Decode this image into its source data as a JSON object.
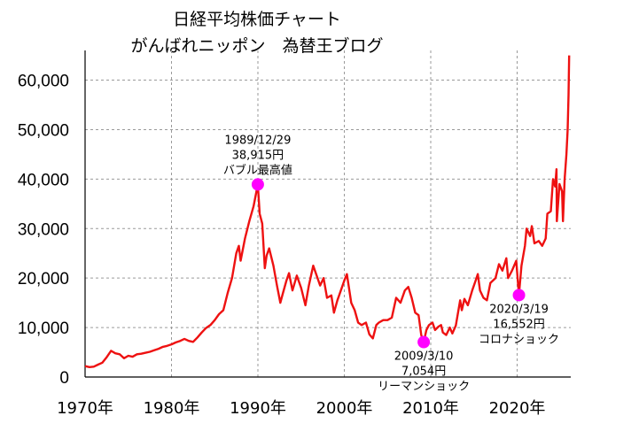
{
  "title_lines": [
    "日経平均株価チャート",
    "がんばれニッポン　為替王ブログ"
  ],
  "colors": {
    "line": "#ee1111",
    "marker": "#ff00ff",
    "grid": "#9a9a9a",
    "axis": "#000000"
  },
  "chart_data": {
    "type": "line",
    "title": "日経平均株価チャート",
    "subtitle": "がんばれニッポン　為替王ブログ",
    "xlabel": "",
    "ylabel": "",
    "xlim": [
      1970,
      2026
    ],
    "ylim": [
      0,
      66000
    ],
    "grid": true,
    "xticks": [
      {
        "value": 1970,
        "label": "1970年"
      },
      {
        "value": 1980,
        "label": "1980年"
      },
      {
        "value": 1990,
        "label": "1990年"
      },
      {
        "value": 2000,
        "label": "2000年"
      },
      {
        "value": 2010,
        "label": "2010年"
      },
      {
        "value": 2020,
        "label": "2020年"
      }
    ],
    "yticks": [
      {
        "value": 0,
        "label": "0"
      },
      {
        "value": 10000,
        "label": "10,000"
      },
      {
        "value": 20000,
        "label": "20,000"
      },
      {
        "value": 30000,
        "label": "30,000"
      },
      {
        "value": 40000,
        "label": "40,000"
      },
      {
        "value": 50000,
        "label": "50,000"
      },
      {
        "value": 60000,
        "label": "60,000"
      }
    ],
    "series": [
      {
        "points": [
          [
            1970.0,
            2200
          ],
          [
            1970.5,
            2000
          ],
          [
            1971.0,
            2100
          ],
          [
            1971.5,
            2500
          ],
          [
            1972.0,
            2900
          ],
          [
            1972.5,
            4000
          ],
          [
            1973.0,
            5300
          ],
          [
            1973.5,
            4800
          ],
          [
            1974.0,
            4600
          ],
          [
            1974.5,
            3800
          ],
          [
            1975.0,
            4300
          ],
          [
            1975.5,
            4100
          ],
          [
            1976.0,
            4600
          ],
          [
            1976.5,
            4700
          ],
          [
            1977.0,
            4900
          ],
          [
            1977.5,
            5100
          ],
          [
            1978.0,
            5400
          ],
          [
            1978.5,
            5700
          ],
          [
            1979.0,
            6100
          ],
          [
            1979.5,
            6300
          ],
          [
            1980.0,
            6600
          ],
          [
            1980.5,
            7000
          ],
          [
            1981.0,
            7300
          ],
          [
            1981.5,
            7700
          ],
          [
            1982.0,
            7300
          ],
          [
            1982.5,
            7100
          ],
          [
            1983.0,
            8000
          ],
          [
            1983.5,
            9000
          ],
          [
            1984.0,
            9900
          ],
          [
            1984.5,
            10500
          ],
          [
            1985.0,
            11500
          ],
          [
            1985.5,
            12700
          ],
          [
            1986.0,
            13500
          ],
          [
            1986.5,
            17000
          ],
          [
            1987.0,
            20000
          ],
          [
            1987.5,
            25000
          ],
          [
            1987.8,
            26500
          ],
          [
            1988.0,
            23500
          ],
          [
            1988.5,
            28000
          ],
          [
            1989.0,
            31500
          ],
          [
            1989.5,
            34500
          ],
          [
            1989.99,
            38915
          ],
          [
            1990.2,
            33000
          ],
          [
            1990.5,
            31000
          ],
          [
            1990.8,
            22000
          ],
          [
            1991.0,
            24500
          ],
          [
            1991.3,
            26000
          ],
          [
            1991.8,
            22500
          ],
          [
            1992.2,
            18500
          ],
          [
            1992.6,
            15000
          ],
          [
            1992.9,
            17000
          ],
          [
            1993.3,
            19500
          ],
          [
            1993.6,
            21000
          ],
          [
            1994.0,
            17500
          ],
          [
            1994.5,
            20500
          ],
          [
            1995.0,
            18000
          ],
          [
            1995.5,
            14500
          ],
          [
            1995.9,
            18500
          ],
          [
            1996.4,
            22500
          ],
          [
            1996.8,
            20500
          ],
          [
            1997.2,
            18500
          ],
          [
            1997.6,
            20000
          ],
          [
            1998.0,
            16000
          ],
          [
            1998.5,
            16500
          ],
          [
            1998.8,
            13000
          ],
          [
            1999.2,
            15500
          ],
          [
            1999.6,
            17500
          ],
          [
            2000.0,
            19500
          ],
          [
            2000.3,
            20800
          ],
          [
            2000.8,
            15000
          ],
          [
            2001.2,
            13500
          ],
          [
            2001.6,
            11000
          ],
          [
            2002.0,
            10500
          ],
          [
            2002.5,
            11000
          ],
          [
            2002.9,
            8600
          ],
          [
            2003.3,
            7800
          ],
          [
            2003.7,
            10500
          ],
          [
            2004.0,
            11000
          ],
          [
            2004.5,
            11500
          ],
          [
            2005.0,
            11500
          ],
          [
            2005.5,
            12000
          ],
          [
            2006.0,
            16000
          ],
          [
            2006.5,
            15000
          ],
          [
            2007.0,
            17500
          ],
          [
            2007.4,
            18200
          ],
          [
            2007.8,
            16000
          ],
          [
            2008.2,
            13000
          ],
          [
            2008.6,
            12500
          ],
          [
            2008.9,
            8500
          ],
          [
            2009.19,
            7054
          ],
          [
            2009.5,
            9500
          ],
          [
            2009.8,
            10500
          ],
          [
            2010.2,
            11000
          ],
          [
            2010.5,
            9500
          ],
          [
            2010.9,
            10200
          ],
          [
            2011.2,
            10500
          ],
          [
            2011.4,
            9000
          ],
          [
            2011.8,
            8500
          ],
          [
            2012.2,
            10000
          ],
          [
            2012.5,
            8800
          ],
          [
            2012.9,
            10400
          ],
          [
            2013.4,
            15500
          ],
          [
            2013.6,
            13500
          ],
          [
            2013.9,
            15800
          ],
          [
            2014.3,
            14500
          ],
          [
            2014.8,
            17500
          ],
          [
            2015.2,
            19500
          ],
          [
            2015.45,
            20800
          ],
          [
            2015.7,
            17500
          ],
          [
            2016.1,
            16000
          ],
          [
            2016.5,
            15500
          ],
          [
            2016.9,
            19000
          ],
          [
            2017.5,
            20000
          ],
          [
            2017.9,
            22800
          ],
          [
            2018.3,
            21500
          ],
          [
            2018.75,
            24000
          ],
          [
            2018.95,
            20000
          ],
          [
            2019.4,
            21500
          ],
          [
            2019.9,
            23500
          ],
          [
            2020.21,
            16552
          ],
          [
            2020.5,
            22500
          ],
          [
            2020.9,
            26500
          ],
          [
            2021.1,
            30000
          ],
          [
            2021.5,
            28500
          ],
          [
            2021.7,
            30500
          ],
          [
            2022.0,
            27000
          ],
          [
            2022.5,
            27500
          ],
          [
            2022.9,
            26500
          ],
          [
            2023.3,
            28000
          ],
          [
            2023.5,
            33000
          ],
          [
            2023.9,
            33500
          ],
          [
            2024.15,
            40000
          ],
          [
            2024.4,
            38500
          ],
          [
            2024.55,
            42000
          ],
          [
            2024.6,
            31500
          ],
          [
            2024.9,
            39000
          ],
          [
            2025.2,
            37500
          ],
          [
            2025.3,
            31500
          ],
          [
            2025.5,
            40000
          ],
          [
            2025.7,
            45000
          ],
          [
            2025.85,
            50000
          ],
          [
            2025.95,
            57000
          ],
          [
            2026.02,
            65000
          ]
        ]
      }
    ],
    "annotations": [
      {
        "x": 1989.99,
        "y": 38915,
        "lines": [
          "1989/12/29",
          "38,915円",
          "バブル最高値"
        ],
        "position": "above"
      },
      {
        "x": 2009.19,
        "y": 7054,
        "lines": [
          "2009/3/10",
          "7,054円",
          "リーマンショック"
        ],
        "position": "below"
      },
      {
        "x": 2020.21,
        "y": 16552,
        "lines": [
          "2020/3/19",
          "16,552円",
          "コロナショック"
        ],
        "position": "below"
      }
    ]
  }
}
